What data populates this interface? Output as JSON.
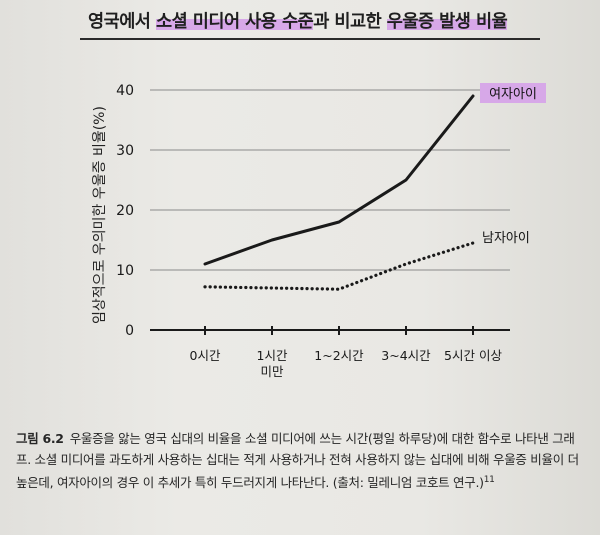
{
  "chart_data": {
    "type": "line",
    "title": "영국에서 소셜 미디어 사용 수준과 비교한 우울증 발생 비율",
    "title_highlighted_phrases": [
      "소셜 미디어 사용 수준",
      "우울증 발생 비율"
    ],
    "ylabel": "임상적으로 우의미한 우울증 비율(%)",
    "xlabel": "",
    "categories": [
      "0시간",
      "1시간 미만",
      "1~2시간",
      "3~4시간",
      "5시간 이상"
    ],
    "ylim": [
      0,
      40
    ],
    "yticks": [
      0,
      10,
      20,
      30,
      40
    ],
    "grid": "horizontal",
    "series": [
      {
        "name": "여자아이",
        "style": "solid",
        "color": "#1a1a1a",
        "label_highlight": "#d7a8e8",
        "values": [
          11,
          15,
          18,
          25,
          39
        ]
      },
      {
        "name": "남자아이",
        "style": "dotted",
        "color": "#1a1a1a",
        "values": [
          7.2,
          7,
          6.8,
          11,
          14.5
        ]
      }
    ]
  },
  "caption": {
    "figure_label": "그림 6.2",
    "text": "우울증을 앓는 영국 십대의 비율을 소셜 미디어에 쓰는 시간(평일 하루당)에 대한 함수로 나타낸 그래프. 소셜 미디어를 과도하게 사용하는 십대는 적게 사용하거나 전혀 사용하지 않는 십대에 비해 우울증 비율이 더 높은데, 여자아이의 경우 이 추세가 특히 두드러지게 나타난다. (출처: 밀레니엄 코호트 연구.)",
    "footnote": "11"
  }
}
